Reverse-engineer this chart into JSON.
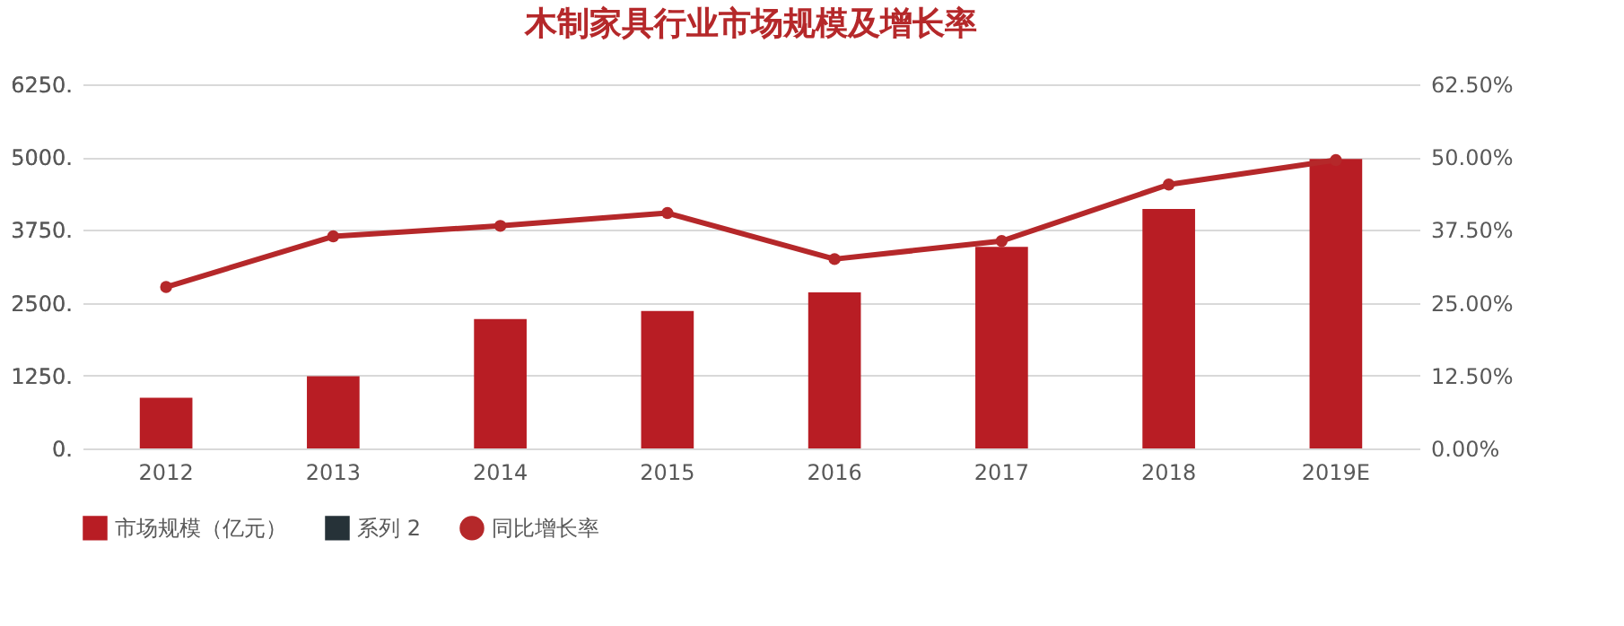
{
  "chart_data": {
    "type": "bar",
    "title": "木制家具行业市场规模及增长率",
    "categories": [
      "2012",
      "2013",
      "2014",
      "2015",
      "2016",
      "2017",
      "2018",
      "2019E"
    ],
    "series": [
      {
        "name": "市场规模（亿元）",
        "color": "#b81d24",
        "values": [
          870,
          1240,
          2220,
          2360,
          2680,
          3460,
          4110,
          4970
        ]
      },
      {
        "name": "系列 2",
        "color": "#263238",
        "values": [
          null,
          null,
          null,
          null,
          null,
          null,
          null,
          null
        ]
      },
      {
        "name": "同比增长率",
        "type": "line",
        "axis": "y2",
        "color": "#b5282a",
        "values": [
          27.7,
          36.4,
          38.2,
          40.4,
          32.5,
          35.6,
          45.3,
          49.5
        ]
      }
    ],
    "ylim": [
      0,
      6250
    ],
    "yticks": [
      {
        "value": 0,
        "label": "0."
      },
      {
        "value": 1250,
        "label": "1250."
      },
      {
        "value": 2500,
        "label": "2500."
      },
      {
        "value": 3750,
        "label": "3750."
      },
      {
        "value": 5000,
        "label": "5000."
      },
      {
        "value": 6250,
        "label": "6250."
      }
    ],
    "y2lim": [
      0,
      62.5
    ],
    "y2ticks": [
      {
        "value": 0,
        "label": "0.00%"
      },
      {
        "value": 12.5,
        "label": "12.50%"
      },
      {
        "value": 25,
        "label": "25.00%"
      },
      {
        "value": 37.5,
        "label": "37.50%"
      },
      {
        "value": 50,
        "label": "50.00%"
      },
      {
        "value": 62.5,
        "label": "62.50%"
      }
    ],
    "grid": "y",
    "legend": "bottom",
    "marker": "circle"
  }
}
